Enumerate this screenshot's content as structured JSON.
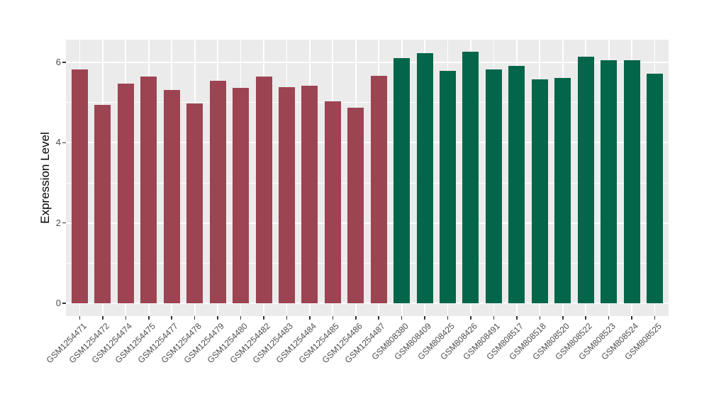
{
  "chart_data": {
    "type": "bar",
    "title": "",
    "xlabel": "",
    "ylabel": "Expression Level",
    "y_axis": {
      "ticks": [
        0,
        2,
        4,
        6
      ],
      "tick_labels": [
        "0",
        "2",
        "4",
        "6"
      ],
      "minor_ticks": [
        1,
        3,
        5
      ],
      "range": [
        -0.32,
        6.57
      ]
    },
    "legend": false,
    "grid": true,
    "colors": {
      "panel_background": "#EBEBEB",
      "gridline": "#FFFFFF",
      "page_background": "#FFFFFF",
      "group1_fill": "#9C4452",
      "group2_fill": "#03664A",
      "axis_text": "#4D4D4D",
      "tick_mark": "#333333"
    },
    "groups": [
      {
        "name": "group-1",
        "color_key": "group1_fill"
      },
      {
        "name": "group-2",
        "color_key": "group2_fill"
      }
    ],
    "bars": [
      {
        "label": "GSM1254471",
        "value": 5.82,
        "group": 0
      },
      {
        "label": "GSM1254472",
        "value": 4.94,
        "group": 0
      },
      {
        "label": "GSM1254474",
        "value": 5.47,
        "group": 0
      },
      {
        "label": "GSM1254475",
        "value": 5.65,
        "group": 0
      },
      {
        "label": "GSM1254477",
        "value": 5.31,
        "group": 0
      },
      {
        "label": "GSM1254478",
        "value": 4.98,
        "group": 0
      },
      {
        "label": "GSM1254479",
        "value": 5.54,
        "group": 0
      },
      {
        "label": "GSM1254480",
        "value": 5.36,
        "group": 0
      },
      {
        "label": "GSM1254482",
        "value": 5.64,
        "group": 0
      },
      {
        "label": "GSM1254483",
        "value": 5.38,
        "group": 0
      },
      {
        "label": "GSM1254484",
        "value": 5.42,
        "group": 0
      },
      {
        "label": "GSM1254485",
        "value": 5.03,
        "group": 0
      },
      {
        "label": "GSM1254486",
        "value": 4.87,
        "group": 0
      },
      {
        "label": "GSM1254487",
        "value": 5.66,
        "group": 0
      },
      {
        "label": "GSM808380",
        "value": 6.11,
        "group": 1
      },
      {
        "label": "GSM808409",
        "value": 6.23,
        "group": 1
      },
      {
        "label": "GSM808425",
        "value": 5.79,
        "group": 1
      },
      {
        "label": "GSM808426",
        "value": 6.26,
        "group": 1
      },
      {
        "label": "GSM808491",
        "value": 5.82,
        "group": 1
      },
      {
        "label": "GSM808517",
        "value": 5.91,
        "group": 1
      },
      {
        "label": "GSM808518",
        "value": 5.58,
        "group": 1
      },
      {
        "label": "GSM808520",
        "value": 5.61,
        "group": 1
      },
      {
        "label": "GSM808522",
        "value": 6.14,
        "group": 1
      },
      {
        "label": "GSM808523",
        "value": 6.05,
        "group": 1
      },
      {
        "label": "GSM808524",
        "value": 6.06,
        "group": 1
      },
      {
        "label": "GSM808525",
        "value": 5.72,
        "group": 1
      }
    ]
  }
}
